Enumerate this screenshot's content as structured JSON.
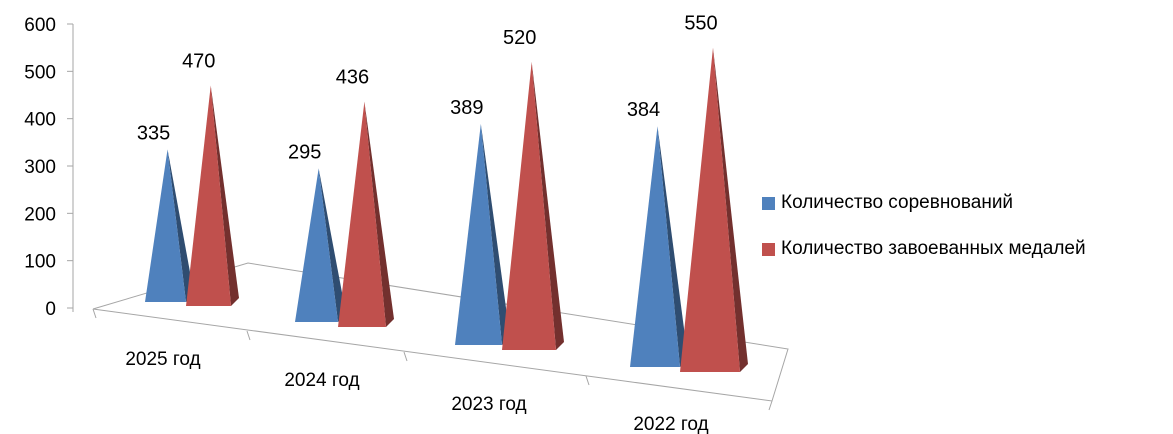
{
  "chart_data": {
    "type": "bar",
    "subtype": "3d-pyramid",
    "title": "",
    "categories": [
      "2025 год",
      "2024 год",
      "2023 год",
      "2022 год"
    ],
    "series": [
      {
        "name": "Количество соревнований",
        "values": [
          335,
          295,
          389,
          384
        ],
        "color": "#4F81BD"
      },
      {
        "name": "Количество завоеванных медалей",
        "values": [
          470,
          436,
          520,
          550
        ],
        "color": "#C0504D"
      }
    ],
    "y_ticks": [
      "0",
      "100",
      "200",
      "300",
      "400",
      "500",
      "600"
    ],
    "ylim": [
      0,
      600
    ],
    "legend_position": "right",
    "grid": false
  }
}
